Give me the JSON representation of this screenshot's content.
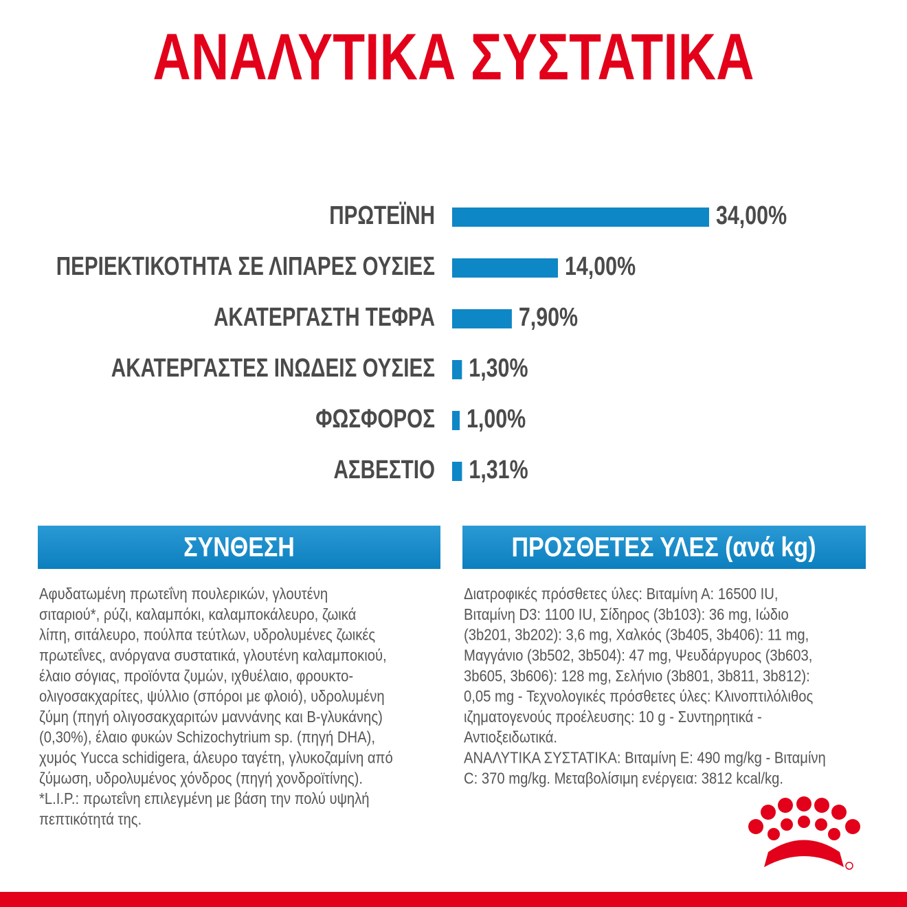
{
  "chart_data": {
    "type": "bar",
    "orientation": "horizontal",
    "title": "ΑΝΑΛΥΤΙΚΑ ΣΥΣΤΑΤΙΚΑ",
    "categories": [
      "ΠΡΩΤΕΪΝΗ",
      "ΠΕΡΙΕΚΤΙΚΟΤΗΤΑ ΣΕ ΛΙΠΑΡΕΣ ΟΥΣΙΕΣ",
      "ΑΚΑΤΕΡΓΑΣΤΗ ΤΕΦΡΑ",
      "ΑΚΑΤΕΡΓΑΣΤΕΣ ΙΝΩΔΕΙΣ ΟΥΣΙΕΣ",
      "ΦΩΣΦΟΡΟΣ",
      "ΑΣΒΕΣΤΙΟ"
    ],
    "values": [
      34,
      14,
      7.9,
      1.3,
      1,
      1.31
    ],
    "value_labels": [
      "34,00%",
      "14,00%",
      "7,90%",
      "1,30%",
      "1,00%",
      "1,31%"
    ],
    "color": "#0e87c6"
  },
  "composition": {
    "title": "ΣΥΝΘΕΣΗ",
    "lines": [
      "Αφυδατωμένη πρωτεΐνη πουλερικών, γλουτένη",
      "σιταριού*, ρύζι, καλαμπόκι, καλαμποκάλευρο, ζωικά",
      "λίπη, σιτάλευρο, πούλπα τεύτλων, υδρολυμένες ζωικές",
      "πρωτεΐνες, ανόργανα συστατικά, γλουτένη καλαμποκιού,",
      "έλαιο σόγιας, προϊόντα ζυμών, ιχθυέλαιο, φρουκτο-",
      "ολιγοσακχαρίτες, ψύλλιο (σπόροι με φλοιό), υδρολυμένη",
      "ζύμη (πηγή ολιγοσακχαριτών μαννάνης και Β-γλυκάνης)",
      "(0,30%), έλαιο φυκών Schizochytrium sp. (πηγή DHA),",
      "χυμός Yucca schidigera, άλευρο ταγέτη, γλυκοζαμίνη από",
      "ζύμωση, υδρολυμένος χόνδρος (πηγή χονδροϊτίνης).",
      "*L.I.P.: πρωτεΐνη επιλεγμένη με βάση την πολύ υψηλή",
      "πεπτικότητά της."
    ]
  },
  "additives": {
    "title": "ΠΡΟΣΘΕΤΕΣ ΥΛΕΣ (ανά kg)",
    "lines": [
      "Διατροφικές πρόσθετες ύλες: Βιταμίνη Α: 16500 IU,",
      "Βιταμίνη D3: 1100 IU, Σίδηρος (3b103): 36 mg, Ιώδιο",
      "(3b201, 3b202): 3,6 mg, Χαλκός (3b405, 3b406): 11 mg,",
      "Μαγγάνιο (3b502, 3b504): 47 mg, Ψευδάργυρος (3b603,",
      "3b605, 3b606): 128 mg, Σελήνιο (3b801, 3b811, 3b812):",
      "0,05 mg - Τεχνολογικές πρόσθετες ύλες: Κλινοπτιλόλιθος",
      "ιζηματογενούς προέλευσης: 10 g - Συντηρητικά -",
      "Αντιοξειδωτικά.",
      "ΑΝΑΛΥΤΙΚΑ ΣΥΣΤΑΤΙΚΑ: Βιταμίνη Ε: 490 mg/kg - Βιταμίνη",
      "C: 370 mg/kg. Μεταβολίσιμη ενέργεια: 3812 kcal/kg."
    ]
  }
}
